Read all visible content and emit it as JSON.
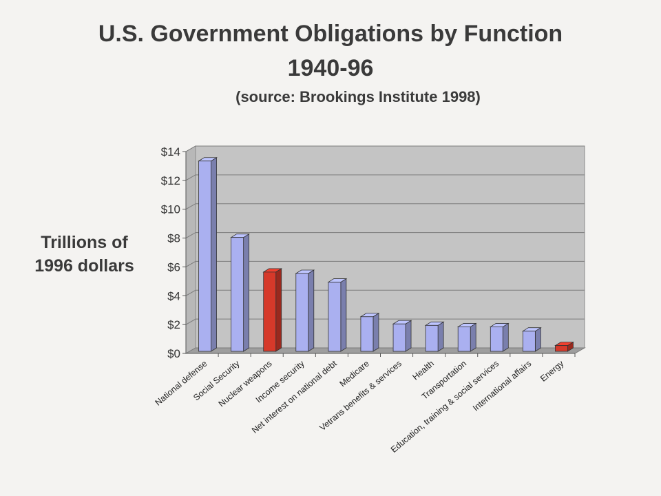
{
  "title": {
    "line1": "U.S. Government Obligations by Function",
    "line2": "1940-96",
    "source": "(source: Brookings Institute 1998)"
  },
  "chart_data": {
    "type": "bar",
    "ylabel_line1": "Trillions of",
    "ylabel_line2": "1996 dollars",
    "ylim": [
      0,
      14
    ],
    "yticks": [
      "$0",
      "$2",
      "$4",
      "$6",
      "$8",
      "$10",
      "$12",
      "$14"
    ],
    "grid": true,
    "categories": [
      "National defense",
      "Social Security",
      "Nuclear weapons",
      "Income security",
      "Net interest on national debt",
      "Medicare",
      "Vetrans benefits & services",
      "Health",
      "Transportation",
      "Education, training & social services",
      "International affairs",
      "Energy"
    ],
    "values": [
      13.2,
      7.9,
      5.5,
      5.4,
      4.8,
      2.4,
      1.9,
      1.8,
      1.7,
      1.7,
      1.4,
      0.4
    ],
    "colors": [
      "#aab0f0",
      "#aab0f0",
      "#d6392a",
      "#aab0f0",
      "#aab0f0",
      "#aab0f0",
      "#aab0f0",
      "#aab0f0",
      "#aab0f0",
      "#aab0f0",
      "#aab0f0",
      "#d6392a"
    ]
  }
}
